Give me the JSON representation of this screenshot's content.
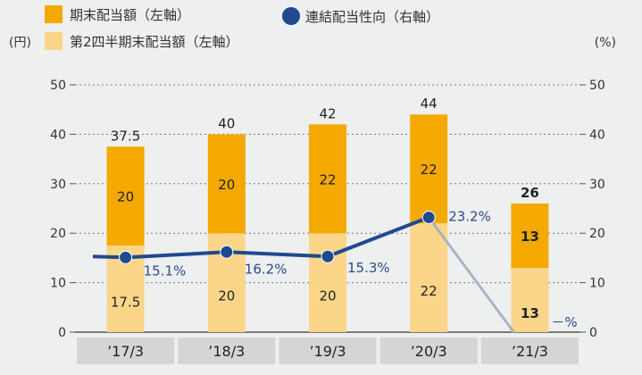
{
  "legend": {
    "year_end": "期末配当額（左軸）",
    "interim": "第2四半期末配当額（左軸）",
    "payout": "連結配当性向（右軸）"
  },
  "axis": {
    "left_unit": "(円)",
    "right_unit": "(%)"
  },
  "colors": {
    "year_end": "#f4a900",
    "interim": "#fbd589",
    "line": "#1f4a8f",
    "cat_band": "#d4d5d6"
  },
  "chart_data": {
    "type": "bar",
    "categories": [
      "’17/3",
      "’18/3",
      "’19/3",
      "’20/3",
      "’21/3"
    ],
    "series": [
      {
        "name": "第2四半期末配当額（左軸）",
        "values": [
          17.5,
          20,
          20,
          22,
          13
        ],
        "labels": [
          "17.5",
          "20",
          "20",
          "22",
          "13"
        ]
      },
      {
        "name": "期末配当額（左軸）",
        "values": [
          20,
          20,
          22,
          22,
          13
        ],
        "labels": [
          "20",
          "20",
          "22",
          "22",
          "13"
        ]
      }
    ],
    "totals": [
      "37.5",
      "40",
      "42",
      "44",
      "26"
    ],
    "line": {
      "name": "連結配当性向（右軸）",
      "values": [
        15.1,
        16.2,
        15.3,
        23.2,
        null
      ],
      "labels": [
        "15.1%",
        "16.2%",
        "15.3%",
        "23.2%",
        "－%"
      ],
      "start_value": 15.3
    },
    "ylim": [
      0,
      50
    ],
    "yticks": [
      0,
      10,
      20,
      30,
      40,
      50
    ],
    "y2lim": [
      0,
      50
    ],
    "grid": "dotted"
  }
}
